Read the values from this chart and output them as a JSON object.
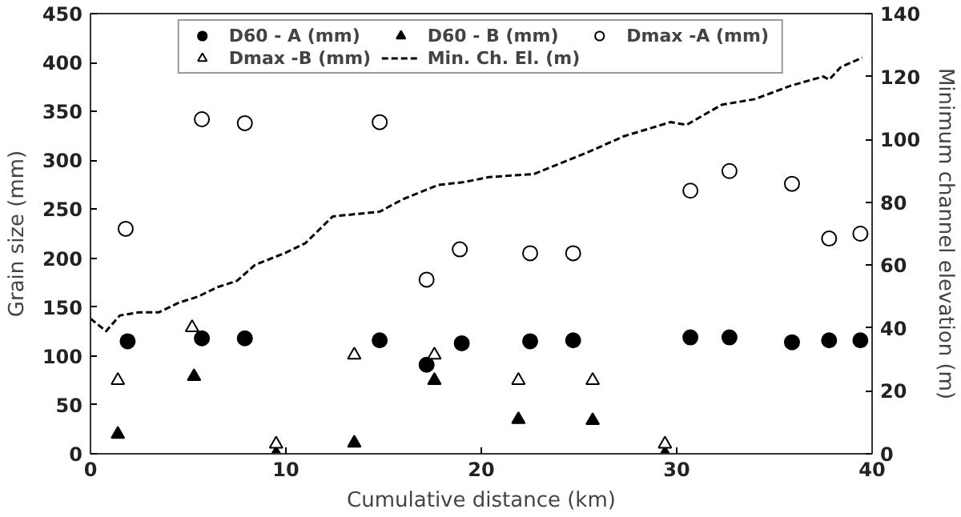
{
  "chart_data": {
    "type": "scatter",
    "xlabel": "Cumulative distance (km)",
    "ylabel": "Grain size (mm)",
    "y2label": "Minimum channel elevation (m)",
    "xlim": [
      0,
      40
    ],
    "xticks": [
      0,
      10,
      20,
      30,
      40
    ],
    "ylim": [
      0,
      450
    ],
    "yticks": [
      0,
      50,
      100,
      150,
      200,
      250,
      300,
      350,
      400,
      450
    ],
    "y2lim": [
      0,
      140
    ],
    "y2ticks": [
      0,
      20,
      40,
      60,
      80,
      100,
      120,
      140
    ],
    "grid": false,
    "legend": "top",
    "series": [
      {
        "name": "D60 - A (mm)",
        "color": "#000000",
        "marker": "circle",
        "x": [
          1.9,
          5.7,
          7.9,
          14.8,
          17.2,
          19.0,
          22.5,
          24.7,
          30.7,
          32.7,
          35.9,
          37.8,
          39.4
        ],
        "values": [
          115,
          118,
          118,
          116,
          91,
          113,
          115,
          116,
          119,
          119,
          114,
          116,
          116
        ]
      },
      {
        "name": "D60 - B (mm)",
        "color": "#000000",
        "marker": "triangle",
        "x": [
          1.4,
          5.3,
          9.5,
          13.5,
          17.6,
          21.9,
          25.7,
          29.4
        ],
        "values": [
          20,
          79,
          0,
          11,
          75,
          35,
          34,
          0
        ]
      },
      {
        "name": "Dmax -A (mm)",
        "color": "#ffffff",
        "marker": "circle",
        "x": [
          1.8,
          5.7,
          7.9,
          14.8,
          17.2,
          18.9,
          22.5,
          24.7,
          30.7,
          32.7,
          35.9,
          37.8,
          39.4
        ],
        "values": [
          230,
          342,
          338,
          339,
          178,
          209,
          205,
          205,
          269,
          289,
          276,
          220,
          225
        ]
      },
      {
        "name": "Dmax -B (mm)",
        "color": "#ffffff",
        "marker": "triangle",
        "x": [
          1.4,
          5.2,
          9.5,
          13.5,
          17.6,
          21.9,
          25.7,
          29.4
        ],
        "values": [
          75,
          129,
          10,
          101,
          101,
          75,
          75,
          10
        ]
      },
      {
        "name": "Min. Ch. El. (m)",
        "type": "line",
        "axis": "y2",
        "line_style": "dashed",
        "color": "#000000",
        "x": [
          0,
          0.8,
          1.5,
          2.5,
          3.5,
          4.5,
          5.5,
          6.5,
          7.5,
          8.4,
          10,
          11,
          12.4,
          14.8,
          16,
          17.8,
          19.1,
          20.4,
          22.7,
          25.3,
          27.3,
          29.7,
          30.5,
          32.3,
          34,
          35.8,
          37.5,
          37.8,
          38.4,
          39.5
        ],
        "values": [
          43,
          39,
          44,
          45,
          45,
          48,
          50,
          53,
          55,
          60,
          64,
          67,
          75.5,
          77,
          81,
          85.5,
          86.4,
          88,
          89,
          95.5,
          101,
          105.5,
          104.6,
          111,
          112.8,
          117,
          120,
          119,
          123,
          126
        ]
      }
    ]
  }
}
